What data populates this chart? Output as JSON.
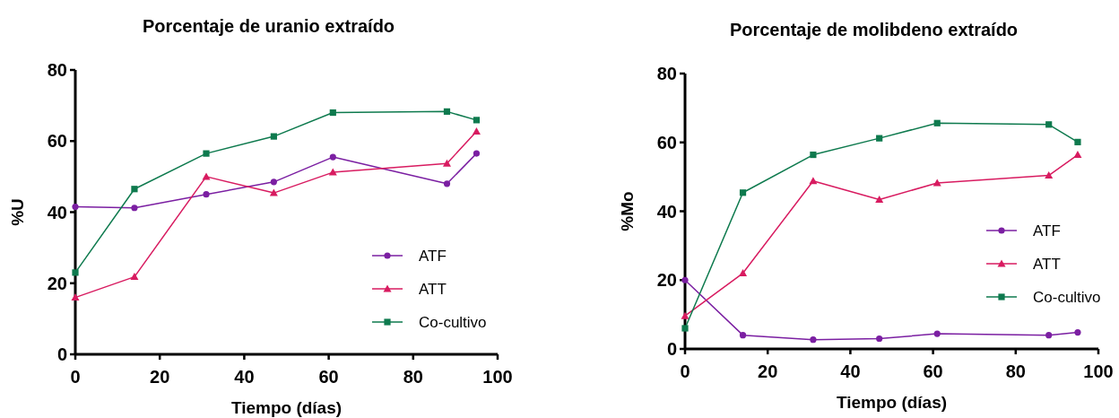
{
  "chart_data": [
    {
      "type": "line",
      "title": "Porcentaje de uranio extraído",
      "xlabel": "Tiempo (días)",
      "ylabel": "%U",
      "x": [
        0,
        14,
        31,
        47,
        61,
        88,
        95
      ],
      "xlim": [
        0,
        100
      ],
      "xticks": [
        0,
        20,
        40,
        60,
        80,
        100
      ],
      "ylim": [
        0,
        80
      ],
      "yticks": [
        0,
        20,
        40,
        60,
        80
      ],
      "legend": "bottom right",
      "series": [
        {
          "name": "ATF",
          "color": "#7b1fa2",
          "marker": "circle",
          "values": [
            41.5,
            41.2,
            45,
            48.5,
            55.5,
            48,
            56.5
          ]
        },
        {
          "name": "ATT",
          "color": "#d81b60",
          "marker": "triangle",
          "values": [
            16,
            21.8,
            50,
            45.4,
            51.2,
            53.7,
            62.7
          ]
        },
        {
          "name": "Co-cultivo",
          "color": "#0e7a4e",
          "marker": "square",
          "values": [
            23,
            46.5,
            56.5,
            61.3,
            68,
            68.3,
            65.9
          ]
        }
      ]
    },
    {
      "type": "line",
      "title": "Porcentaje de molibdeno extraído",
      "xlabel": "Tiempo (días)",
      "ylabel": "%Mo",
      "x": [
        0,
        14,
        31,
        47,
        61,
        88,
        95
      ],
      "xlim": [
        0,
        100
      ],
      "xticks": [
        0,
        20,
        40,
        60,
        80,
        100
      ],
      "ylim": [
        0,
        80
      ],
      "yticks": [
        0,
        20,
        40,
        60,
        80
      ],
      "legend": "right",
      "series": [
        {
          "name": "ATF",
          "color": "#7b1fa2",
          "marker": "circle",
          "values": [
            20,
            4,
            2.7,
            3,
            4.4,
            4,
            4.8
          ]
        },
        {
          "name": "ATT",
          "color": "#d81b60",
          "marker": "triangle",
          "values": [
            9.6,
            22,
            48.8,
            43.4,
            48.2,
            50.4,
            56.4
          ]
        },
        {
          "name": "Co-cultivo",
          "color": "#0e7a4e",
          "marker": "square",
          "values": [
            6,
            45.4,
            56.4,
            61.2,
            65.6,
            65.2,
            60.1
          ]
        }
      ]
    }
  ]
}
